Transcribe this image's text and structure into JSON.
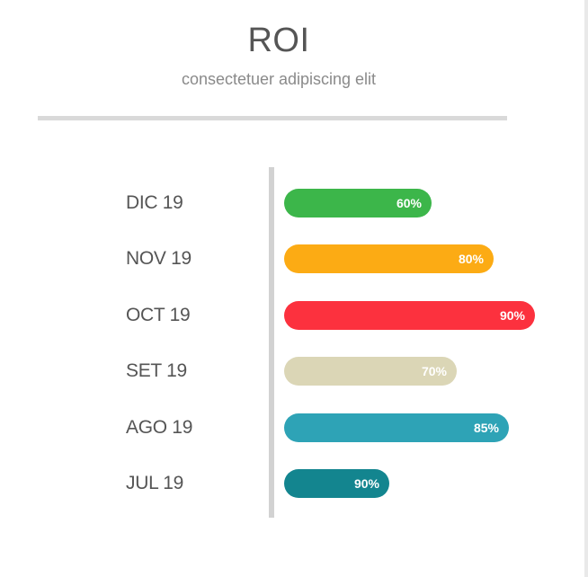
{
  "header": {
    "title": "ROI",
    "subtitle": "consectetuer adipiscing elit"
  },
  "chart_data": {
    "type": "bar",
    "orientation": "horizontal",
    "title": "ROI",
    "subtitle": "consectetuer adipiscing elit",
    "categories": [
      "DIC 19",
      "NOV 19",
      "OCT 19",
      "SET 19",
      "AGO 19",
      "JUL 19"
    ],
    "values": [
      60,
      80,
      90,
      70,
      85,
      90
    ],
    "value_labels": [
      "60%",
      "80%",
      "90%",
      "70%",
      "85%",
      "90%"
    ],
    "colors": [
      "#3cb64a",
      "#fcab14",
      "#fc313e",
      "#dbd6b6",
      "#2ea3b6",
      "#13858f"
    ],
    "grid": false,
    "legend": "none"
  }
}
